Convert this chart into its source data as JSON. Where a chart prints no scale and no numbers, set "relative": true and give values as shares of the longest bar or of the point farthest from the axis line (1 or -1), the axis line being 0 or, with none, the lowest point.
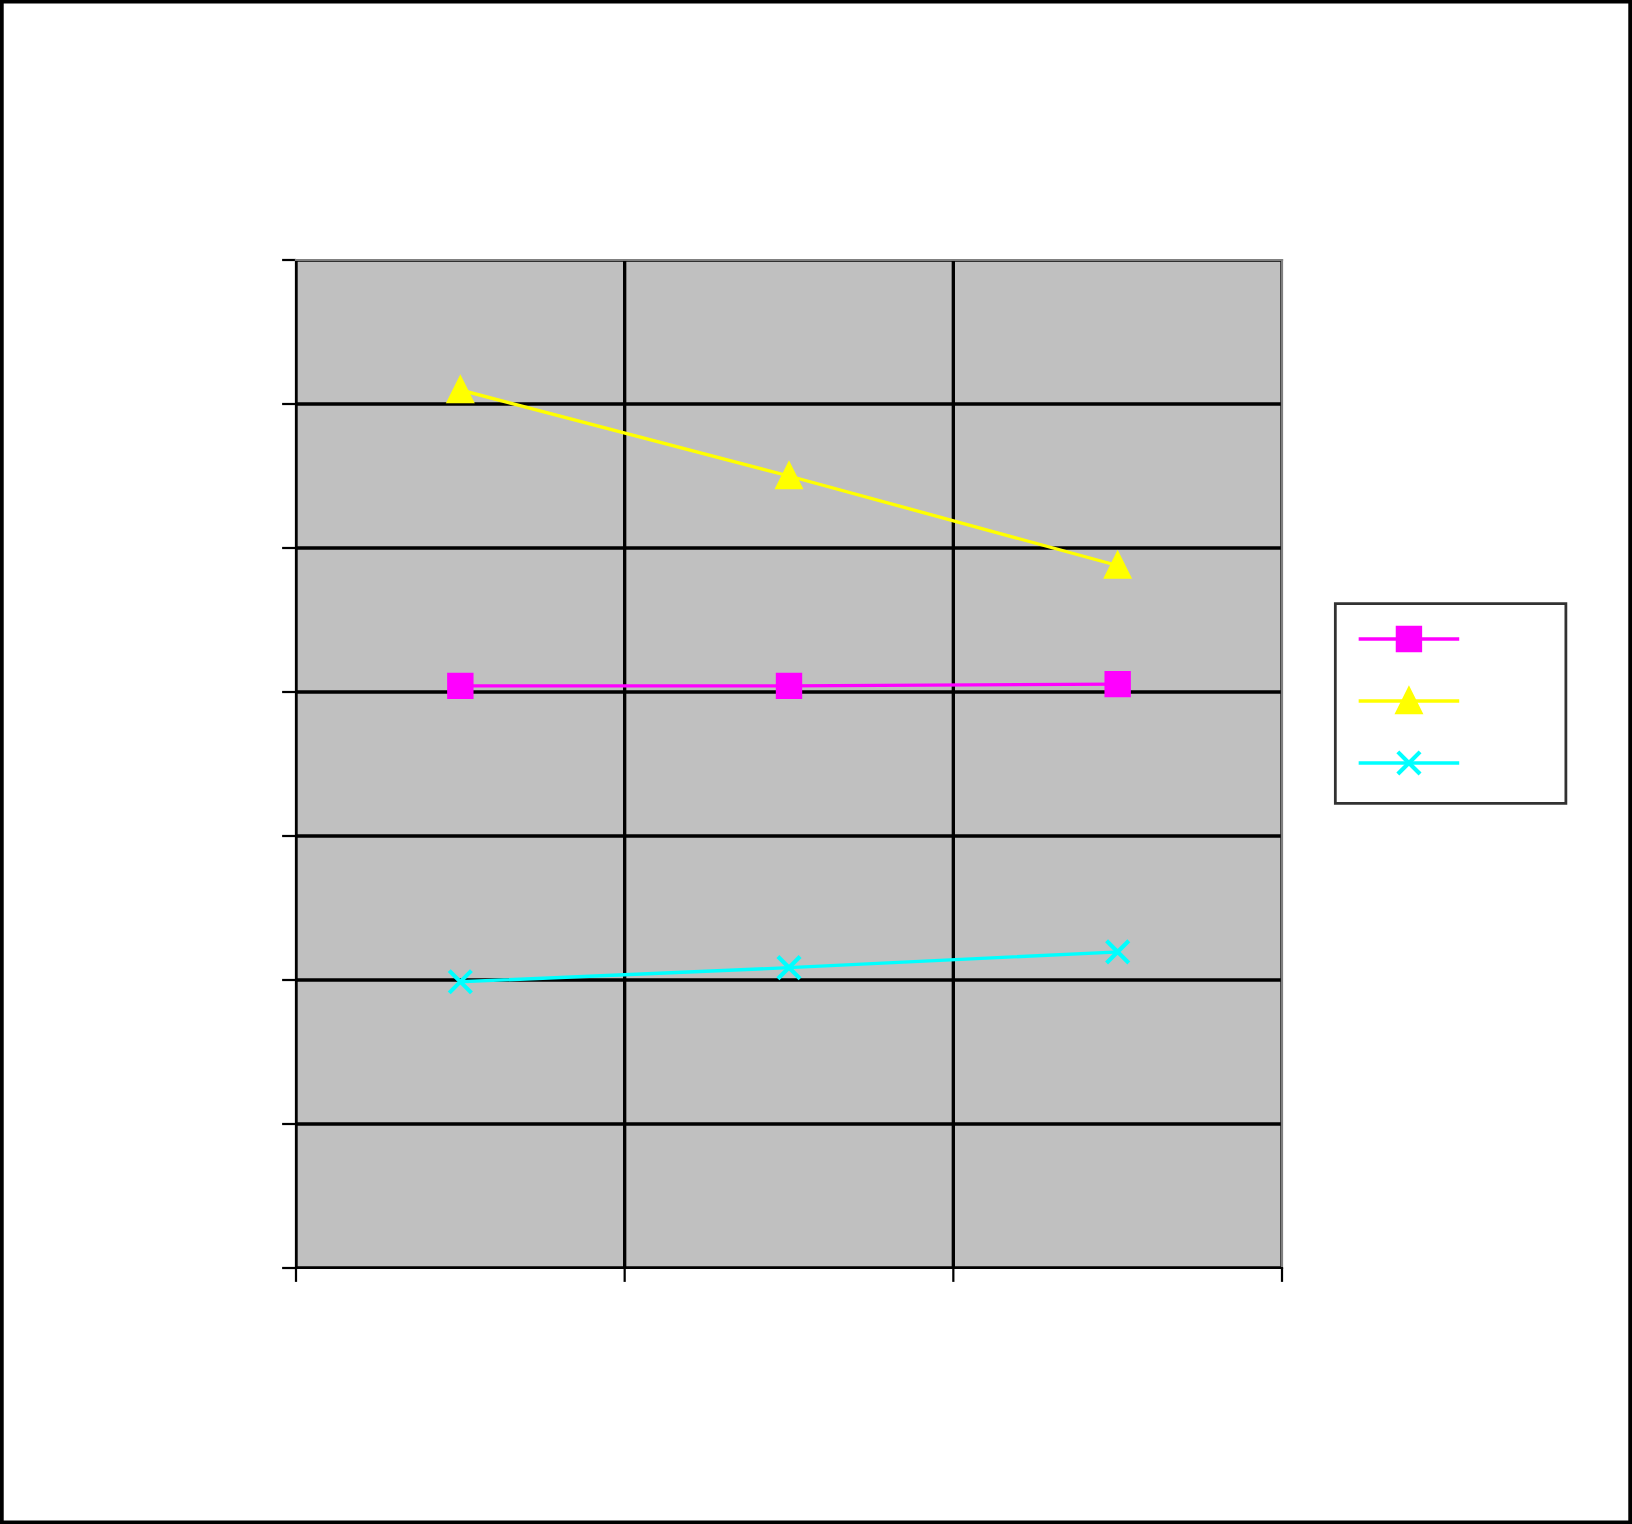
{
  "chart_data": {
    "type": "line",
    "relative": true,
    "categories": [
      null,
      null,
      null
    ],
    "series": [
      {
        "color": "#ff00ff",
        "marker": "square",
        "values": [
          0.663,
          0.663,
          0.665
        ]
      },
      {
        "color": "#ffff00",
        "marker": "triangle",
        "values": [
          1,
          0.902,
          0.8
        ]
      },
      {
        "color": "#00ffff",
        "marker": "cross",
        "values": [
          0.326,
          0.342,
          0.36
        ]
      }
    ],
    "grid": true,
    "line_style": "solid"
  }
}
